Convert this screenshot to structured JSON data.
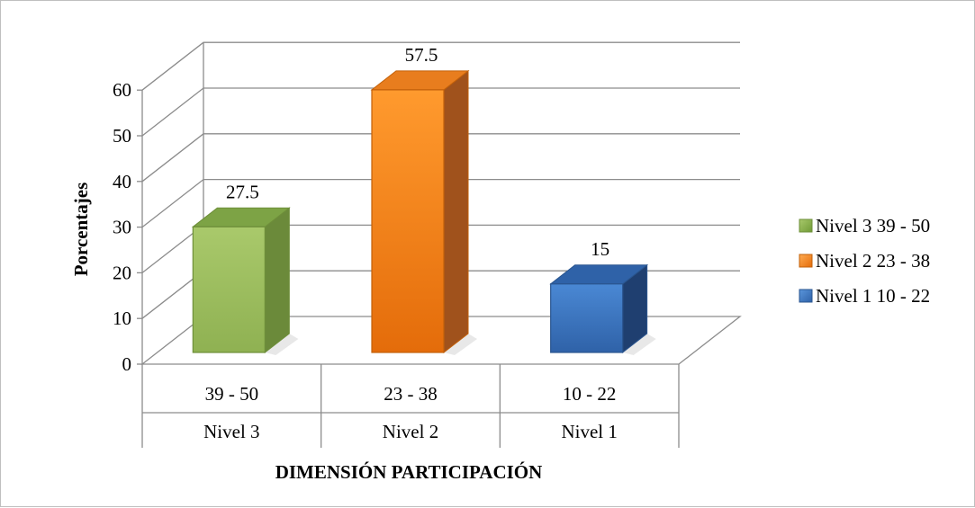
{
  "chart_data": {
    "type": "bar",
    "title": "",
    "xlabel": "DIMENSIÓN PARTICIPACIÓN",
    "ylabel": "Porcentajes",
    "ylim": [
      0,
      60
    ],
    "yticks": [
      0,
      10,
      20,
      30,
      40,
      50,
      60
    ],
    "grid": true,
    "legend_position": "right",
    "categories": [
      {
        "range": "39 - 50",
        "level": "Nivel 3"
      },
      {
        "range": "23 - 38",
        "level": "Nivel 2"
      },
      {
        "range": "10 - 22",
        "level": "Nivel 1"
      }
    ],
    "series": [
      {
        "name": "Nivel 3 39 - 50",
        "value": 27.5,
        "label": "27.5",
        "color": "#9bbb59"
      },
      {
        "name": "Nivel 2 23 - 38",
        "value": 57.5,
        "label": "57.5",
        "color": "#f79646"
      },
      {
        "name": "Nivel 1 10 - 22",
        "value": 15,
        "label": "15",
        "color": "#4f81bd"
      }
    ]
  }
}
